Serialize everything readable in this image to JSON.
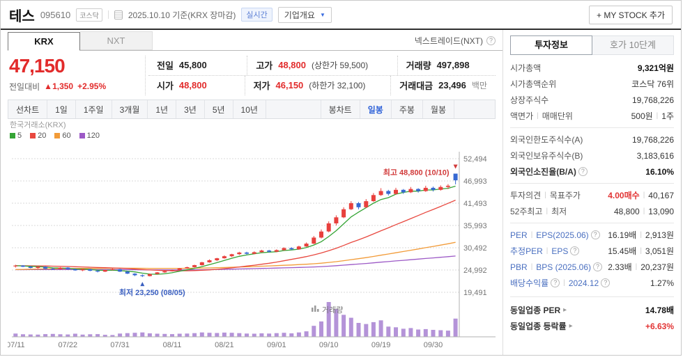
{
  "header": {
    "stock_name": "테스",
    "stock_code": "095610",
    "market_badge": "코스닥",
    "date_info": "2025.10.10 기준(KRX 장마감)",
    "realtime_badge": "실시간",
    "company_overview": "기업개요",
    "my_stock_button": "+ MY STOCK 추가"
  },
  "icons": {
    "help": "?",
    "caret_down": "▼",
    "arrow_right": "▸"
  },
  "market_tabs": {
    "krx": "KRX",
    "nxt": "NXT",
    "nxt_notice": "넥스트레이드(NXT)"
  },
  "price": {
    "current": "47,150",
    "change_label": "전일대비",
    "change_arrow": "▲",
    "change_value": "1,350",
    "change_percent": "+2.95%"
  },
  "quote": {
    "rows": [
      [
        {
          "label": "전일",
          "value": "45,800"
        },
        {
          "label": "고가",
          "value": "48,800",
          "color": "red",
          "sub": "(상한가 59,500)"
        },
        {
          "label": "거래량",
          "value": "497,898"
        }
      ],
      [
        {
          "label": "시가",
          "value": "48,800",
          "color": "red"
        },
        {
          "label": "저가",
          "value": "46,150",
          "color": "red",
          "sub": "(하한가 32,100)"
        },
        {
          "label": "거래대금",
          "value": "23,496",
          "unit": "백만"
        }
      ]
    ]
  },
  "chart_toolbar": {
    "left": [
      "선차트",
      "1일",
      "1주일",
      "3개월",
      "1년",
      "3년",
      "5년",
      "10년"
    ],
    "right": [
      "봉차트",
      "일봉",
      "주봉",
      "월봉"
    ],
    "active": "일봉"
  },
  "chart": {
    "source_label": "한국거래소(KRX)",
    "legend": [
      {
        "label": "5",
        "color": "#35a435"
      },
      {
        "label": "20",
        "color": "#e8483f"
      },
      {
        "label": "60",
        "color": "#f29b38"
      },
      {
        "label": "120",
        "color": "#9c59c6"
      }
    ],
    "annotations": {
      "high": "최고 48,800 (10/10)",
      "low": "최저 23,250 (08/05)"
    },
    "volume_label": "거래량",
    "y_ticks": [
      "52,494",
      "46,993",
      "41,493",
      "35,993",
      "30,492",
      "24,992",
      "19,491"
    ],
    "x_ticks": [
      "07/11",
      "07/22",
      "07/31",
      "08/11",
      "08/21",
      "09/01",
      "09/10",
      "09/19",
      "09/30"
    ]
  },
  "colors": {
    "up": "#e8403d",
    "down": "#3668d2",
    "volume": "#b493d8",
    "price_red": "#e22b2b",
    "blue_accent": "#2f62d8",
    "ann_high": "#d13a3a",
    "ann_low": "#3a5fc0"
  },
  "chart_data": {
    "type": "candlestick",
    "title": "테스(095610) 일봉 차트",
    "y_tick_values": [
      52494,
      46993,
      41493,
      35993,
      30492,
      24992,
      19491
    ],
    "x_tick_indices": [
      0,
      7,
      14,
      21,
      28,
      35,
      42,
      49,
      56
    ],
    "high_index": 59,
    "high_value": 48800,
    "low_index": 17,
    "low_value": 23250,
    "ma": [
      {
        "period": 120,
        "color": "#9c59c6"
      },
      {
        "period": 60,
        "color": "#f29b38"
      },
      {
        "period": 20,
        "color": "#e8483f"
      },
      {
        "period": 5,
        "color": "#35a435"
      }
    ],
    "pre_closes": [
      23000,
      23200,
      23100,
      23400,
      23300,
      23600,
      23500,
      23800,
      23700,
      24000,
      23900,
      24100,
      24000,
      24300,
      24200,
      24500,
      24400,
      24600,
      24500,
      24800,
      24700,
      24900,
      24800,
      25000,
      24900,
      25100,
      25000,
      25200,
      25100,
      25300,
      25200,
      25400,
      25300,
      25500,
      25400,
      25600,
      25500,
      25700,
      25600,
      25800,
      25700,
      25900,
      25800,
      26000,
      25900,
      26100,
      26000,
      26200,
      26100,
      26300,
      26200,
      26100,
      26000,
      26100,
      26000,
      25900,
      26000,
      26100,
      26000,
      26050
    ],
    "candles": [
      [
        "07/11",
        25900,
        26300,
        25600,
        26100,
        90000
      ],
      [
        "07/14",
        26100,
        26200,
        25700,
        25800,
        70000
      ],
      [
        "07/15",
        25800,
        26000,
        25400,
        25500,
        65000
      ],
      [
        "07/16",
        25500,
        25900,
        25300,
        25800,
        60000
      ],
      [
        "07/17",
        25800,
        25900,
        25200,
        25300,
        75000
      ],
      [
        "07/18",
        25300,
        25600,
        25000,
        25200,
        80000
      ],
      [
        "07/21",
        25200,
        25700,
        25100,
        25600,
        70000
      ],
      [
        "07/22",
        25600,
        25700,
        25100,
        25200,
        65000
      ],
      [
        "07/23",
        25200,
        25400,
        24800,
        24900,
        85000
      ],
      [
        "07/24",
        24900,
        25300,
        24700,
        25200,
        60000
      ],
      [
        "07/25",
        25200,
        25300,
        24700,
        24800,
        70000
      ],
      [
        "07/28",
        24800,
        25000,
        24400,
        24600,
        75000
      ],
      [
        "07/29",
        24600,
        25100,
        24500,
        25000,
        55000
      ],
      [
        "07/30",
        25000,
        25400,
        24900,
        25200,
        50000
      ],
      [
        "07/31",
        25200,
        25300,
        24500,
        24600,
        90000
      ],
      [
        "08/01",
        24600,
        24800,
        24000,
        24100,
        100000
      ],
      [
        "08/04",
        24100,
        24200,
        23500,
        23700,
        110000
      ],
      [
        "08/05",
        23700,
        23900,
        23250,
        23500,
        120000
      ],
      [
        "08/06",
        23500,
        24100,
        23400,
        24000,
        95000
      ],
      [
        "08/07",
        24000,
        24500,
        23900,
        24400,
        85000
      ],
      [
        "08/08",
        24400,
        24800,
        24300,
        24700,
        80000
      ],
      [
        "08/11",
        24700,
        25100,
        24600,
        25000,
        75000
      ],
      [
        "08/12",
        25000,
        25500,
        24900,
        25400,
        85000
      ],
      [
        "08/13",
        25400,
        25800,
        25300,
        25700,
        90000
      ],
      [
        "08/14",
        25700,
        26300,
        25600,
        26200,
        100000
      ],
      [
        "08/18",
        26200,
        27000,
        26100,
        26900,
        120000
      ],
      [
        "08/19",
        26900,
        27600,
        26800,
        27400,
        110000
      ],
      [
        "08/20",
        27400,
        28000,
        27200,
        27900,
        105000
      ],
      [
        "08/21",
        27900,
        28600,
        27800,
        28400,
        115000
      ],
      [
        "08/22",
        28400,
        29000,
        28200,
        28900,
        110000
      ],
      [
        "08/25",
        28900,
        29500,
        28700,
        29300,
        100000
      ],
      [
        "08/26",
        29300,
        29500,
        28800,
        29000,
        90000
      ],
      [
        "08/27",
        29000,
        29600,
        28900,
        29400,
        85000
      ],
      [
        "08/28",
        29400,
        30000,
        29300,
        29800,
        95000
      ],
      [
        "08/29",
        29800,
        30000,
        29300,
        29500,
        90000
      ],
      [
        "09/01",
        29500,
        30100,
        29400,
        29900,
        100000
      ],
      [
        "09/02",
        29900,
        30600,
        29800,
        30400,
        110000
      ],
      [
        "09/03",
        30400,
        30600,
        29900,
        30100,
        95000
      ],
      [
        "09/04",
        30100,
        31000,
        30000,
        30800,
        120000
      ],
      [
        "09/05",
        30800,
        31800,
        30700,
        31500,
        150000
      ],
      [
        "09/08",
        31500,
        33400,
        31400,
        33000,
        300000
      ],
      [
        "09/09",
        33000,
        35000,
        32800,
        34500,
        420000
      ],
      [
        "09/10",
        34500,
        37000,
        34300,
        36500,
        950000
      ],
      [
        "09/11",
        36500,
        38500,
        36000,
        38000,
        760000
      ],
      [
        "09/12",
        38000,
        40500,
        37800,
        40000,
        600000
      ],
      [
        "09/15",
        40000,
        42000,
        39800,
        41500,
        520000
      ],
      [
        "09/16",
        41500,
        41800,
        40000,
        40500,
        380000
      ],
      [
        "09/17",
        40500,
        42500,
        40300,
        42000,
        350000
      ],
      [
        "09/18",
        42000,
        44000,
        41800,
        43500,
        400000
      ],
      [
        "09/19",
        43500,
        45200,
        43300,
        44500,
        450000
      ],
      [
        "09/22",
        44500,
        44800,
        43400,
        43800,
        280000
      ],
      [
        "09/23",
        43800,
        45300,
        43600,
        44800,
        260000
      ],
      [
        "09/24",
        44800,
        45000,
        43800,
        44200,
        220000
      ],
      [
        "09/25",
        44200,
        45500,
        44000,
        45000,
        240000
      ],
      [
        "09/26",
        45000,
        45200,
        44100,
        44500,
        200000
      ],
      [
        "09/29",
        44500,
        45800,
        44300,
        45300,
        210000
      ],
      [
        "09/30",
        45300,
        45600,
        44400,
        44800,
        190000
      ],
      [
        "10/01",
        44800,
        45900,
        44600,
        45500,
        180000
      ],
      [
        "10/02",
        45500,
        46200,
        45000,
        45800,
        170000
      ],
      [
        "10/10",
        48800,
        48800,
        46150,
        47150,
        497898
      ]
    ]
  },
  "sidebar": {
    "tabs": [
      "투자정보",
      "호가 10단계"
    ],
    "groups": [
      [
        {
          "label": "시가총액",
          "value": "9,321억원",
          "value_bold": true
        },
        {
          "label": "시가총액순위",
          "value": "코스닥 76위"
        },
        {
          "label": "상장주식수",
          "value": "19,768,226"
        },
        {
          "label": "액면가",
          "label2": "매매단위",
          "value": "500원",
          "value2": "1주"
        }
      ],
      [
        {
          "label": "외국인한도주식수(A)",
          "value": "19,768,226"
        },
        {
          "label": "외국인보유주식수(B)",
          "value": "3,183,616"
        },
        {
          "label": "외국인소진율(B/A)",
          "label_bold": true,
          "help": true,
          "value": "16.10%",
          "value_bold": true
        }
      ],
      [
        {
          "label": "투자의견",
          "label2": "목표주가",
          "value": "4.00매수",
          "value_color": "red",
          "value2": "40,167"
        },
        {
          "label": "52주최고",
          "label2": "최저",
          "value": "48,800",
          "value2": "13,090"
        }
      ],
      [
        {
          "label": "PER",
          "label2": "EPS(2025.06)",
          "link": true,
          "help2": true,
          "value": "16.19배",
          "value2": "2,913원"
        },
        {
          "label": "추정PER",
          "label2": "EPS",
          "link": true,
          "help2": true,
          "value": "15.45배",
          "value2": "3,051원"
        },
        {
          "label": "PBR",
          "label2": "BPS (2025.06)",
          "link": true,
          "help2": true,
          "value": "2.33배",
          "value2": "20,237원"
        },
        {
          "label": "배당수익률",
          "label2": "2024.12",
          "link": true,
          "help": true,
          "help2": true,
          "value": "1.27%"
        }
      ],
      [
        {
          "label": "동일업종 PER",
          "label_bold": true,
          "arrow": true,
          "value": "14.78배",
          "value_bold": true
        },
        {
          "label": "동일업종 등락률",
          "label_bold": true,
          "arrow": true,
          "value": "+6.63%",
          "value_color": "red"
        }
      ]
    ]
  }
}
